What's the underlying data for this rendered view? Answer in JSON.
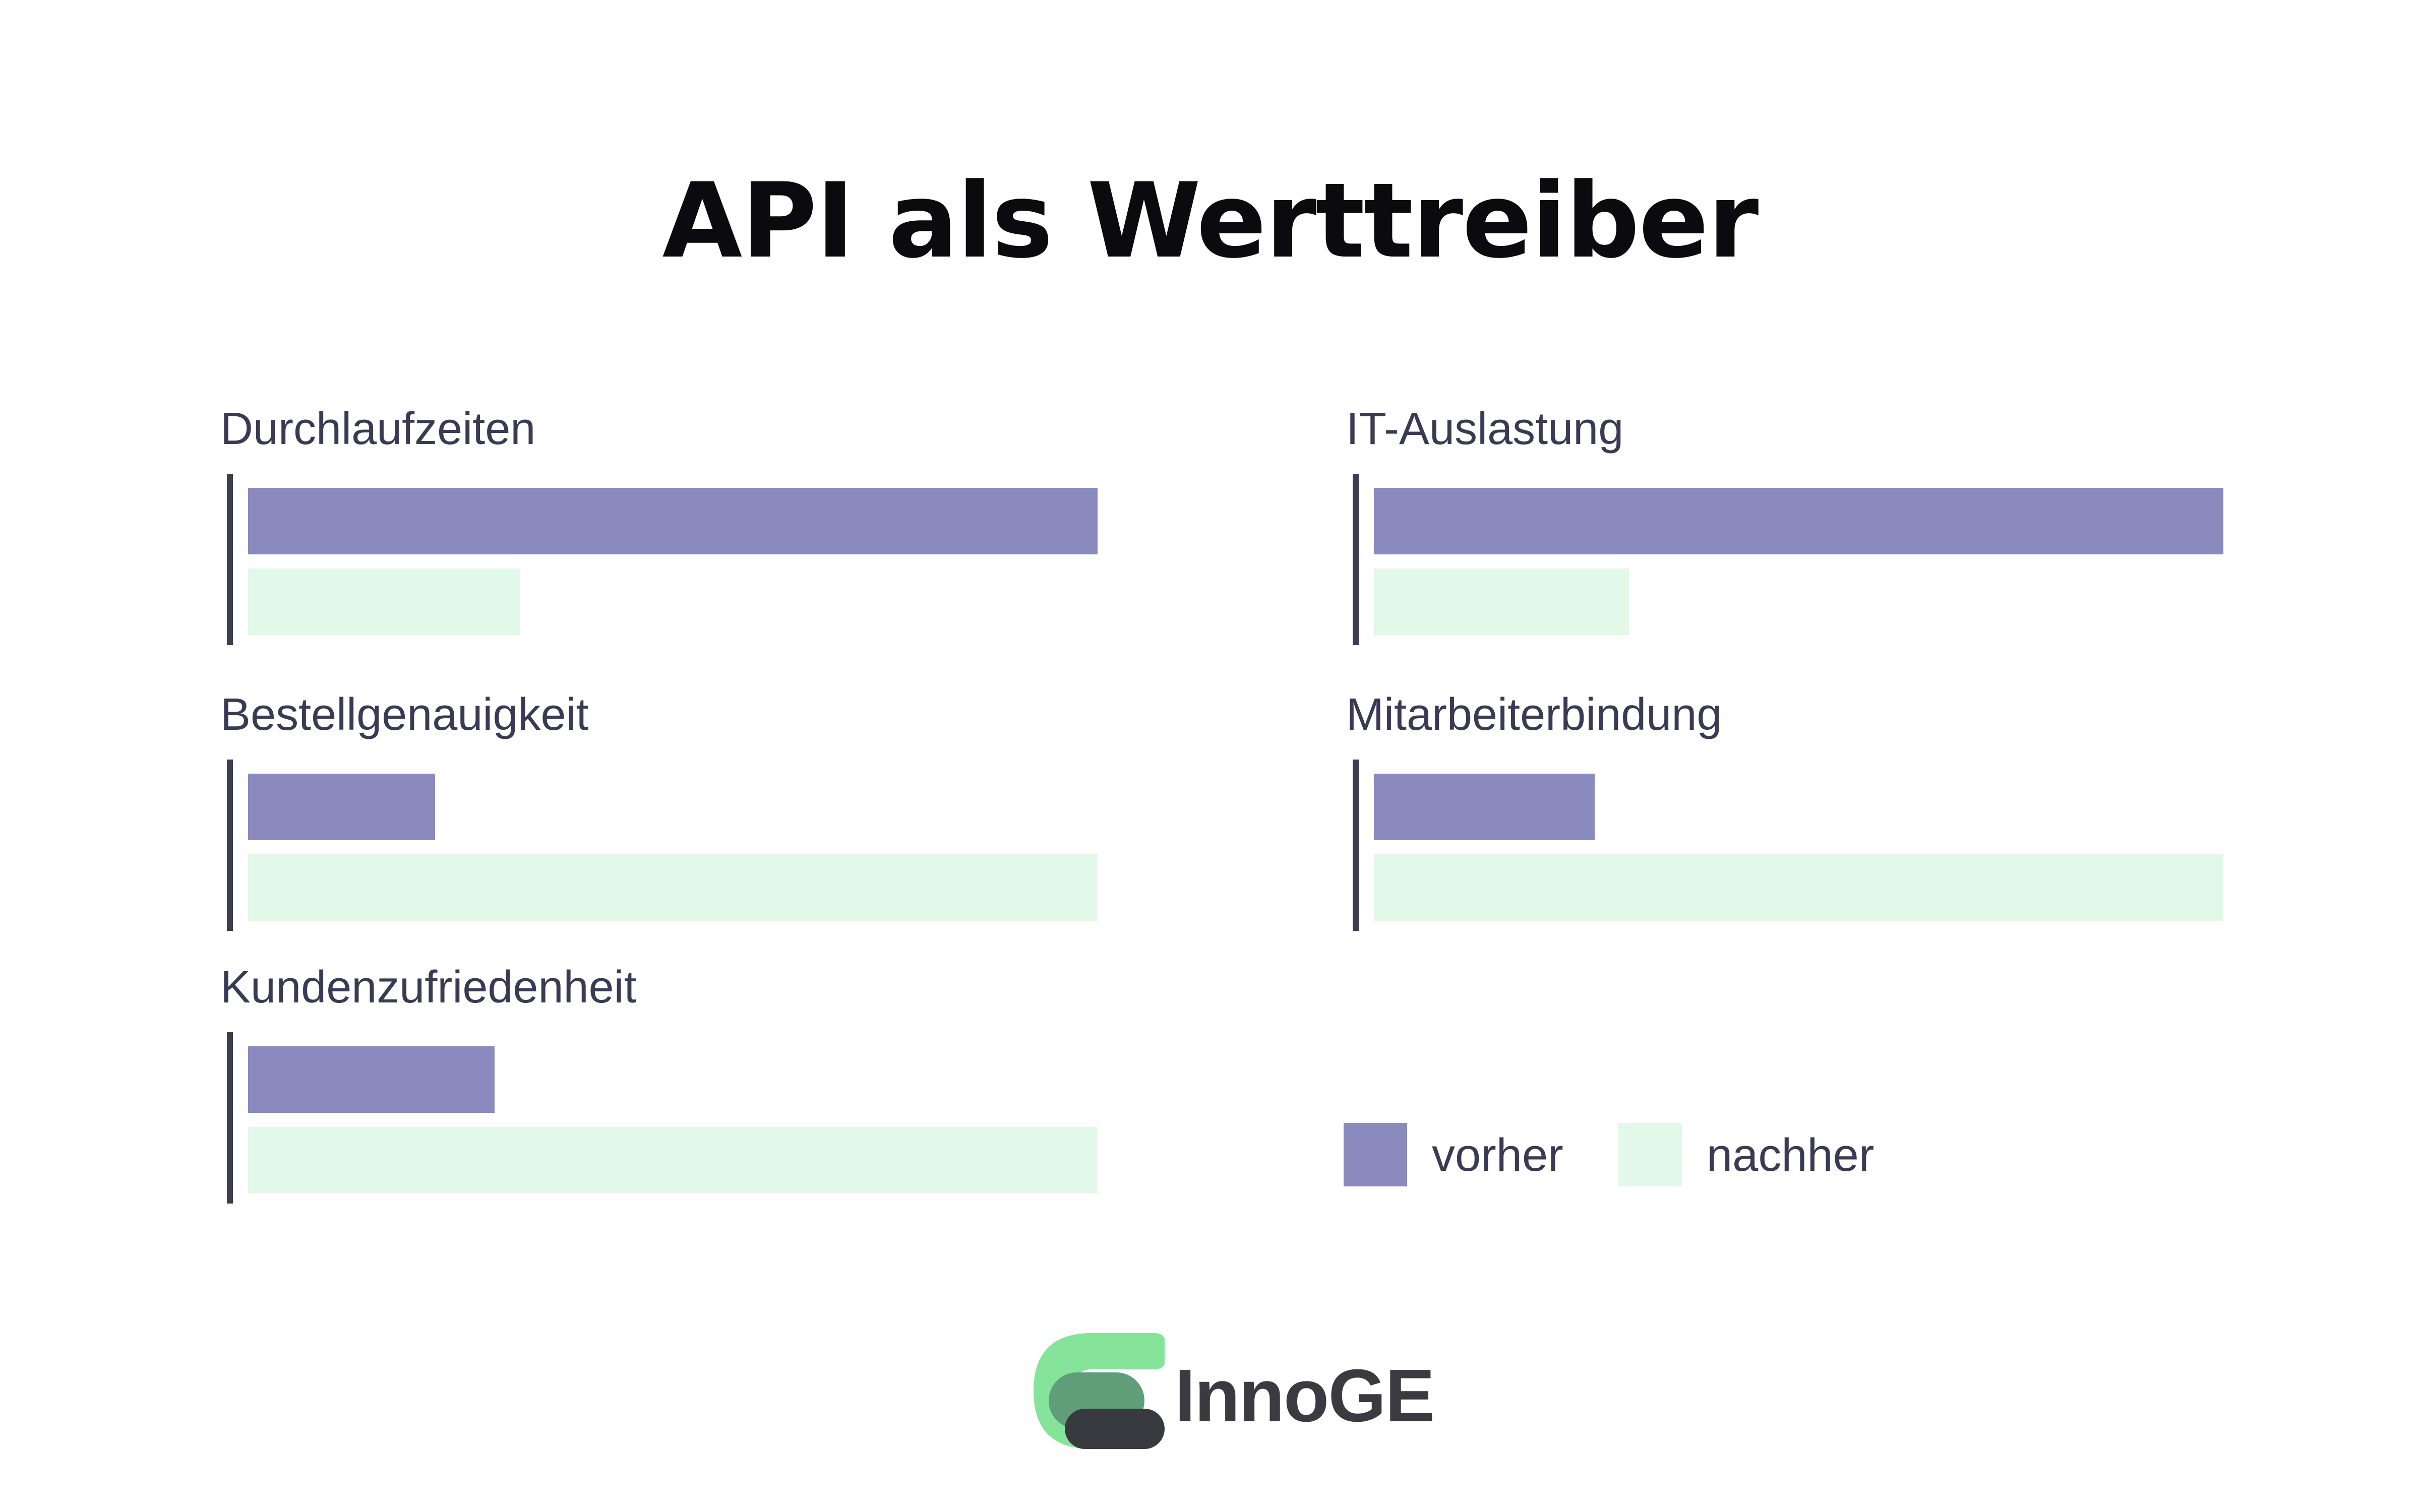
{
  "title": "API als Werttreiber",
  "chart_data": [
    {
      "type": "bar",
      "title": "Durchlaufzeiten",
      "orientation": "horizontal",
      "series": [
        {
          "name": "vorher",
          "value": 100
        },
        {
          "name": "nachher",
          "value": 32
        }
      ],
      "xlim": [
        0,
        100
      ]
    },
    {
      "type": "bar",
      "title": "IT-Auslastung",
      "orientation": "horizontal",
      "series": [
        {
          "name": "vorher",
          "value": 100
        },
        {
          "name": "nachher",
          "value": 30
        }
      ],
      "xlim": [
        0,
        100
      ]
    },
    {
      "type": "bar",
      "title": "Bestellgenauigkeit",
      "orientation": "horizontal",
      "series": [
        {
          "name": "vorher",
          "value": 22
        },
        {
          "name": "nachher",
          "value": 100
        }
      ],
      "xlim": [
        0,
        100
      ]
    },
    {
      "type": "bar",
      "title": "Mitarbeiterbindung",
      "orientation": "horizontal",
      "series": [
        {
          "name": "vorher",
          "value": 26
        },
        {
          "name": "nachher",
          "value": 100
        }
      ],
      "xlim": [
        0,
        100
      ]
    },
    {
      "type": "bar",
      "title": "Kundenzufriedenheit",
      "orientation": "horizontal",
      "series": [
        {
          "name": "vorher",
          "value": 29
        },
        {
          "name": "nachher",
          "value": 100
        }
      ],
      "xlim": [
        0,
        100
      ]
    }
  ],
  "legend": {
    "items": [
      {
        "label": "vorher",
        "color": "#8a8abe"
      },
      {
        "label": "nachher",
        "color": "#e2f8e8"
      }
    ]
  },
  "colors": {
    "vorher": "#8a8abe",
    "nachher": "#e2f8e8",
    "axis": "#3e3d4f"
  },
  "logo": {
    "text": "InnoGE",
    "icon": "innoge-logo-icon"
  }
}
